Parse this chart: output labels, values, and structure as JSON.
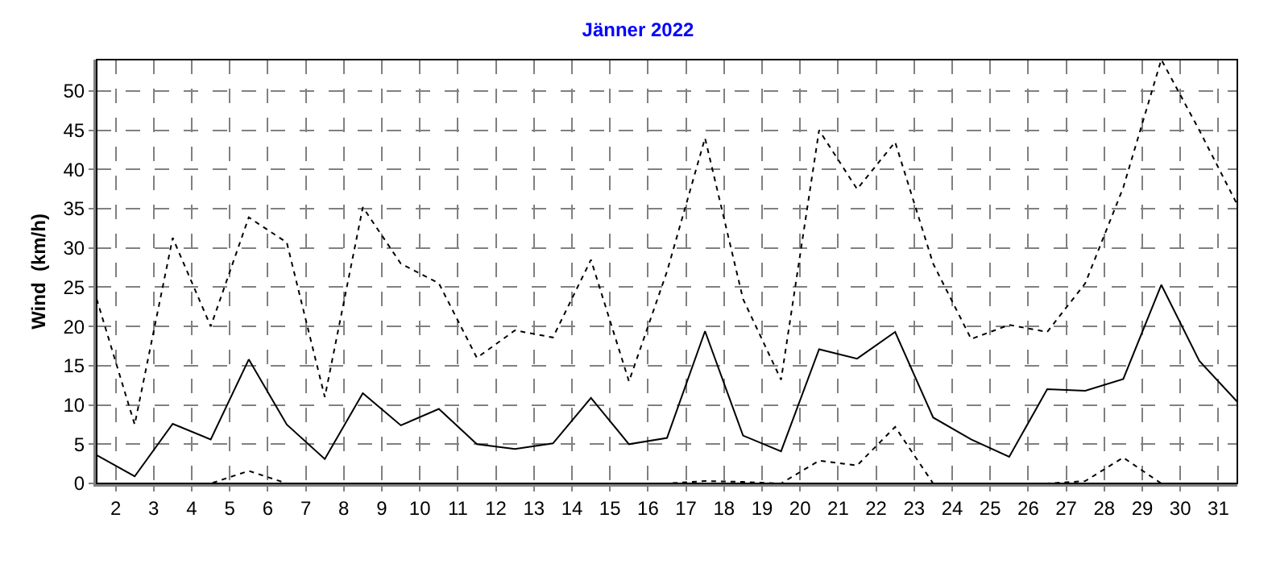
{
  "chart_data": {
    "type": "line",
    "title": "Jänner 2022",
    "ylabel": "Wind  (km/h)",
    "x": [
      1.5,
      2.5,
      3.5,
      4.5,
      5.5,
      6.5,
      7.5,
      8.5,
      9.5,
      10.5,
      11.5,
      12.5,
      13.5,
      14.5,
      15.5,
      16.5,
      17.5,
      18.5,
      19.5,
      20.5,
      21.5,
      22.5,
      23.5,
      24.5,
      25.5,
      26.5,
      27.5,
      28.5,
      29.5,
      30.5,
      31.5
    ],
    "xlim": [
      1.5,
      31.5
    ],
    "xticks": [
      2,
      3,
      4,
      5,
      6,
      7,
      8,
      9,
      10,
      11,
      12,
      13,
      14,
      15,
      16,
      17,
      18,
      19,
      20,
      21,
      22,
      23,
      24,
      25,
      26,
      27,
      28,
      29,
      30,
      31
    ],
    "ylim": [
      0,
      54
    ],
    "yticks": [
      0,
      5,
      10,
      15,
      20,
      25,
      30,
      35,
      40,
      45,
      50
    ],
    "grid": true,
    "marker": "none",
    "series": [
      {
        "color": "#000000",
        "line_style": "dotted",
        "values": [
          23.5,
          7.5,
          31.3,
          20,
          33.9,
          30.7,
          11,
          35.2,
          28,
          25.5,
          16,
          19.5,
          18.6,
          28.5,
          13,
          27,
          44,
          23.5,
          13.2,
          45,
          37.5,
          43.5,
          28,
          18.4,
          20.2,
          19.3,
          25.5,
          37.7,
          54,
          45,
          35.5
        ]
      },
      {
        "color": "#000000",
        "line_style": "solid",
        "values": [
          3.6,
          0.9,
          7.6,
          5.6,
          15.8,
          7.5,
          3.1,
          11.5,
          7.4,
          9.5,
          5,
          4.4,
          5.1,
          10.9,
          5,
          5.8,
          19.4,
          6.1,
          4.1,
          17.1,
          15.9,
          19.3,
          8.4,
          5.6,
          3.4,
          12,
          11.8,
          13.3,
          25.3,
          15.6,
          10.4
        ]
      },
      {
        "color": "#000000",
        "line_style": "dotted",
        "values": [
          0,
          0,
          0,
          0,
          1.6,
          0,
          0,
          0,
          0,
          0,
          0,
          0,
          0,
          0,
          0,
          0,
          0.3,
          0.2,
          0,
          2.9,
          2.3,
          7.2,
          0,
          0,
          0,
          0,
          0.3,
          3.3,
          0,
          0,
          0
        ]
      }
    ]
  }
}
